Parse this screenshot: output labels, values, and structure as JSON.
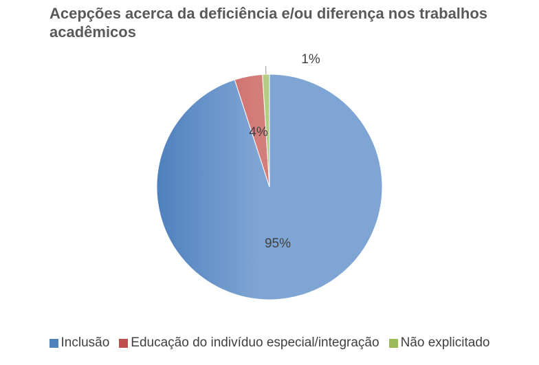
{
  "chart_data": {
    "type": "pie",
    "title": "Acepções acerca da deficiência e/ou diferença nos trabalhos acadêmicos",
    "slices": [
      {
        "name": "Inclusão",
        "value": 95,
        "label": "95%",
        "color": "#4F81BD",
        "light_color": "#7FA5D4"
      },
      {
        "name": "Educação do indivíduo especial/integração",
        "value": 4,
        "label": "4%",
        "color": "#C0504D",
        "light_color": "#D47E7C"
      },
      {
        "name": "Não explicitado",
        "value": 1,
        "label": "1%",
        "color": "#9BBB59",
        "light_color": "#B4CD84"
      }
    ],
    "legend_position": "bottom",
    "start_angle_deg": 0,
    "direction": "clockwise"
  }
}
